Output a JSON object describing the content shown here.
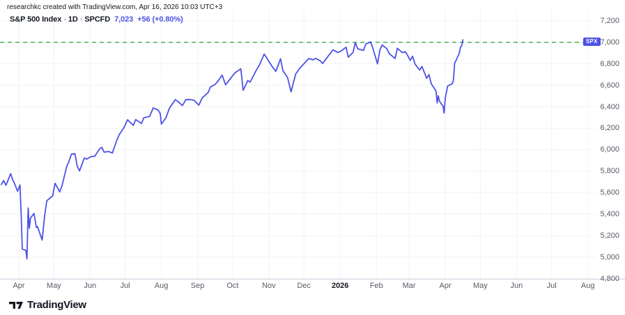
{
  "attribution": {
    "text": "researchkc created with TradingView.com, Apr 16, 2026 10:03 UTC+3"
  },
  "symbol_header": {
    "name": "S&P 500 Index",
    "sep1": "·",
    "interval": "1D",
    "sep2": "·",
    "exchange": "SPCFD",
    "price": "7,023",
    "change": "+56 (+0.80%)"
  },
  "footer": {
    "brand": "TradingView",
    "logo_icon": "tradingview-17-mark"
  },
  "colors": {
    "line": "#4C52E6",
    "price_text": "#4C52E6",
    "badge_bg": "#4C52E6",
    "badge_text": "#ffffff",
    "alert_line": "#4CAF50",
    "axis_text": "#555A64",
    "title_text": "#131722",
    "grid": "#F0F3FA",
    "axis_line": "#D1D4DC",
    "background": "#FFFFFF"
  },
  "chart_data": {
    "type": "line",
    "title": "S&P 500 Index · 1D · SPCFD",
    "xlabel": "",
    "ylabel": "",
    "grid": true,
    "legend": false,
    "alert_line": {
      "label": "SPX",
      "value": 7000,
      "style": "dashed-green"
    },
    "y_axis": {
      "min": 4800,
      "max": 7200,
      "step": 200,
      "ticks": [
        {
          "value": 7200,
          "label": "7,200"
        },
        {
          "value": 7000,
          "label": "7,000"
        },
        {
          "value": 6800,
          "label": "6,800"
        },
        {
          "value": 6600,
          "label": "6,600"
        },
        {
          "value": 6400,
          "label": "6,400"
        },
        {
          "value": 6200,
          "label": "6,200"
        },
        {
          "value": 6000,
          "label": "6,000"
        },
        {
          "value": 5800,
          "label": "5,800"
        },
        {
          "value": 5600,
          "label": "5,600"
        },
        {
          "value": 5400,
          "label": "5,400"
        },
        {
          "value": 5200,
          "label": "5,200"
        },
        {
          "value": 5000,
          "label": "5,000"
        },
        {
          "value": 4800,
          "label": "4,800"
        }
      ]
    },
    "x_axis": {
      "ticks": [
        {
          "label": "Apr",
          "date": "2025-04-01"
        },
        {
          "label": "May",
          "date": "2025-05-01"
        },
        {
          "label": "Jun",
          "date": "2025-06-01"
        },
        {
          "label": "Jul",
          "date": "2025-07-01"
        },
        {
          "label": "Aug",
          "date": "2025-08-01"
        },
        {
          "label": "Sep",
          "date": "2025-09-01"
        },
        {
          "label": "Oct",
          "date": "2025-10-01"
        },
        {
          "label": "Nov",
          "date": "2025-11-01"
        },
        {
          "label": "Dec",
          "date": "2025-12-01"
        },
        {
          "label": "2026",
          "date": "2026-01-01",
          "bold": true
        },
        {
          "label": "Feb",
          "date": "2026-02-01"
        },
        {
          "label": "Mar",
          "date": "2026-03-01"
        },
        {
          "label": "Apr",
          "date": "2026-04-01"
        },
        {
          "label": "May",
          "date": "2026-05-01"
        },
        {
          "label": "Jun",
          "date": "2026-06-01"
        },
        {
          "label": "Jul",
          "date": "2026-07-01"
        },
        {
          "label": "Aug",
          "date": "2026-08-01"
        }
      ]
    },
    "series": [
      {
        "name": "SPX",
        "last_price": 7023,
        "change": 56,
        "change_pct": 0.8,
        "points": [
          [
            "2025-03-17",
            5675
          ],
          [
            "2025-03-19",
            5712
          ],
          [
            "2025-03-21",
            5668
          ],
          [
            "2025-03-25",
            5777
          ],
          [
            "2025-03-27",
            5712
          ],
          [
            "2025-03-28",
            5694
          ],
          [
            "2025-03-31",
            5612
          ],
          [
            "2025-04-02",
            5671
          ],
          [
            "2025-04-03",
            5396
          ],
          [
            "2025-04-04",
            5074
          ],
          [
            "2025-04-07",
            5062
          ],
          [
            "2025-04-08",
            4983
          ],
          [
            "2025-04-09",
            5457
          ],
          [
            "2025-04-10",
            5268
          ],
          [
            "2025-04-11",
            5363
          ],
          [
            "2025-04-14",
            5406
          ],
          [
            "2025-04-16",
            5276
          ],
          [
            "2025-04-17",
            5283
          ],
          [
            "2025-04-21",
            5158
          ],
          [
            "2025-04-23",
            5376
          ],
          [
            "2025-04-25",
            5525
          ],
          [
            "2025-04-29",
            5561
          ],
          [
            "2025-04-30",
            5569
          ],
          [
            "2025-05-02",
            5687
          ],
          [
            "2025-05-06",
            5607
          ],
          [
            "2025-05-08",
            5664
          ],
          [
            "2025-05-12",
            5844
          ],
          [
            "2025-05-14",
            5893
          ],
          [
            "2025-05-16",
            5958
          ],
          [
            "2025-05-19",
            5963
          ],
          [
            "2025-05-21",
            5845
          ],
          [
            "2025-05-23",
            5803
          ],
          [
            "2025-05-27",
            5922
          ],
          [
            "2025-05-29",
            5912
          ],
          [
            "2025-06-02",
            5936
          ],
          [
            "2025-06-05",
            5939
          ],
          [
            "2025-06-09",
            6006
          ],
          [
            "2025-06-11",
            6022
          ],
          [
            "2025-06-13",
            5977
          ],
          [
            "2025-06-17",
            5983
          ],
          [
            "2025-06-20",
            5968
          ],
          [
            "2025-06-24",
            6092
          ],
          [
            "2025-06-26",
            6141
          ],
          [
            "2025-06-30",
            6205
          ],
          [
            "2025-07-03",
            6279
          ],
          [
            "2025-07-08",
            6226
          ],
          [
            "2025-07-10",
            6280
          ],
          [
            "2025-07-15",
            6244
          ],
          [
            "2025-07-17",
            6297
          ],
          [
            "2025-07-22",
            6310
          ],
          [
            "2025-07-25",
            6389
          ],
          [
            "2025-07-29",
            6371
          ],
          [
            "2025-07-31",
            6339
          ],
          [
            "2025-08-01",
            6238
          ],
          [
            "2025-08-05",
            6299
          ],
          [
            "2025-08-08",
            6389
          ],
          [
            "2025-08-13",
            6466
          ],
          [
            "2025-08-15",
            6450
          ],
          [
            "2025-08-19",
            6411
          ],
          [
            "2025-08-22",
            6467
          ],
          [
            "2025-08-26",
            6466
          ],
          [
            "2025-08-29",
            6460
          ],
          [
            "2025-09-02",
            6415
          ],
          [
            "2025-09-05",
            6482
          ],
          [
            "2025-09-10",
            6532
          ],
          [
            "2025-09-12",
            6584
          ],
          [
            "2025-09-16",
            6607
          ],
          [
            "2025-09-18",
            6632
          ],
          [
            "2025-09-22",
            6694
          ],
          [
            "2025-09-25",
            6605
          ],
          [
            "2025-09-29",
            6661
          ],
          [
            "2025-10-03",
            6716
          ],
          [
            "2025-10-08",
            6754
          ],
          [
            "2025-10-10",
            6553
          ],
          [
            "2025-10-14",
            6644
          ],
          [
            "2025-10-16",
            6629
          ],
          [
            "2025-10-21",
            6735
          ],
          [
            "2025-10-24",
            6792
          ],
          [
            "2025-10-28",
            6891
          ],
          [
            "2025-10-31",
            6840
          ],
          [
            "2025-11-04",
            6772
          ],
          [
            "2025-11-07",
            6729
          ],
          [
            "2025-11-11",
            6847
          ],
          [
            "2025-11-13",
            6737
          ],
          [
            "2025-11-17",
            6672
          ],
          [
            "2025-11-20",
            6539
          ],
          [
            "2025-11-24",
            6705
          ],
          [
            "2025-11-28",
            6766
          ],
          [
            "2025-12-02",
            6812
          ],
          [
            "2025-12-05",
            6849
          ],
          [
            "2025-12-09",
            6837
          ],
          [
            "2025-12-11",
            6851
          ],
          [
            "2025-12-15",
            6828
          ],
          [
            "2025-12-17",
            6803
          ],
          [
            "2025-12-22",
            6875
          ],
          [
            "2025-12-26",
            6930
          ],
          [
            "2025-12-30",
            6905
          ],
          [
            "2026-01-02",
            6920
          ],
          [
            "2026-01-06",
            6955
          ],
          [
            "2026-01-08",
            6862
          ],
          [
            "2026-01-12",
            6905
          ],
          [
            "2026-01-14",
            6999
          ],
          [
            "2026-01-16",
            6940
          ],
          [
            "2026-01-21",
            6925
          ],
          [
            "2026-01-23",
            6985
          ],
          [
            "2026-01-27",
            7004
          ],
          [
            "2026-01-29",
            6945
          ],
          [
            "2026-02-02",
            6800
          ],
          [
            "2026-02-04",
            6930
          ],
          [
            "2026-02-06",
            6975
          ],
          [
            "2026-02-10",
            6940
          ],
          [
            "2026-02-12",
            6895
          ],
          [
            "2026-02-17",
            6850
          ],
          [
            "2026-02-19",
            6945
          ],
          [
            "2026-02-23",
            6905
          ],
          [
            "2026-02-26",
            6912
          ],
          [
            "2026-03-02",
            6832
          ],
          [
            "2026-03-04",
            6870
          ],
          [
            "2026-03-06",
            6800
          ],
          [
            "2026-03-10",
            6742
          ],
          [
            "2026-03-12",
            6775
          ],
          [
            "2026-03-16",
            6665
          ],
          [
            "2026-03-18",
            6700
          ],
          [
            "2026-03-20",
            6613
          ],
          [
            "2026-03-24",
            6548
          ],
          [
            "2026-03-25",
            6435
          ],
          [
            "2026-03-26",
            6503
          ],
          [
            "2026-03-27",
            6452
          ],
          [
            "2026-03-30",
            6405
          ],
          [
            "2026-03-31",
            6341
          ],
          [
            "2026-04-01",
            6483
          ],
          [
            "2026-04-03",
            6593
          ],
          [
            "2026-04-07",
            6615
          ],
          [
            "2026-04-08",
            6650
          ],
          [
            "2026-04-09",
            6807
          ],
          [
            "2026-04-10",
            6826
          ],
          [
            "2026-04-13",
            6900
          ],
          [
            "2026-04-14",
            6956
          ],
          [
            "2026-04-15",
            6967
          ],
          [
            "2026-04-16",
            7023
          ]
        ]
      }
    ]
  }
}
